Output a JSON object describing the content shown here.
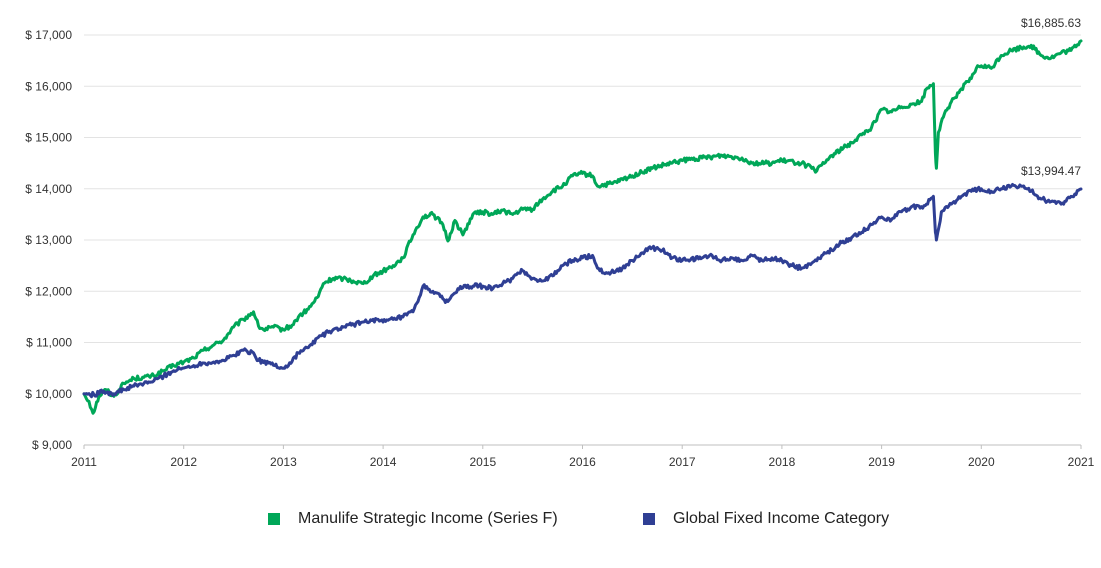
{
  "chart_data": {
    "type": "line",
    "title": "",
    "xlabel": "",
    "ylabel": "",
    "xlim": [
      2011,
      2021
    ],
    "ylim": [
      9000,
      17000
    ],
    "x_ticks": [
      "2011",
      "2012",
      "2013",
      "2014",
      "2015",
      "2016",
      "2017",
      "2018",
      "2019",
      "2020",
      "2021"
    ],
    "y_ticks": [
      "$ 9,000",
      "$ 10,000",
      "$ 11,000",
      "$ 12,000",
      "$ 13,000",
      "$ 14,000",
      "$ 15,000",
      "$ 16,000",
      "$ 17,000"
    ],
    "grid": true,
    "legend_position": "bottom-center",
    "series": [
      {
        "name": "Manulife Strategic Income (Series F)",
        "color": "#00a758",
        "end_label": "$16,885.63",
        "points": [
          [
            2011.0,
            10000
          ],
          [
            2011.05,
            9850
          ],
          [
            2011.09,
            9620
          ],
          [
            2011.15,
            9950
          ],
          [
            2011.22,
            10080
          ],
          [
            2011.3,
            9950
          ],
          [
            2011.4,
            10200
          ],
          [
            2011.5,
            10300
          ],
          [
            2011.6,
            10320
          ],
          [
            2011.7,
            10350
          ],
          [
            2011.8,
            10450
          ],
          [
            2011.9,
            10550
          ],
          [
            2012.0,
            10620
          ],
          [
            2012.1,
            10700
          ],
          [
            2012.2,
            10850
          ],
          [
            2012.3,
            10950
          ],
          [
            2012.4,
            11050
          ],
          [
            2012.5,
            11300
          ],
          [
            2012.6,
            11450
          ],
          [
            2012.7,
            11600
          ],
          [
            2012.75,
            11320
          ],
          [
            2012.8,
            11250
          ],
          [
            2012.9,
            11300
          ],
          [
            2013.0,
            11250
          ],
          [
            2013.1,
            11350
          ],
          [
            2013.15,
            11500
          ],
          [
            2013.25,
            11650
          ],
          [
            2013.35,
            11900
          ],
          [
            2013.4,
            12150
          ],
          [
            2013.5,
            12250
          ],
          [
            2013.6,
            12250
          ],
          [
            2013.7,
            12200
          ],
          [
            2013.8,
            12150
          ],
          [
            2013.9,
            12300
          ],
          [
            2014.0,
            12400
          ],
          [
            2014.1,
            12500
          ],
          [
            2014.2,
            12650
          ],
          [
            2014.3,
            13100
          ],
          [
            2014.4,
            13450
          ],
          [
            2014.5,
            13500
          ],
          [
            2014.6,
            13300
          ],
          [
            2014.65,
            12980
          ],
          [
            2014.72,
            13380
          ],
          [
            2014.8,
            13100
          ],
          [
            2014.9,
            13500
          ],
          [
            2015.0,
            13550
          ],
          [
            2015.1,
            13500
          ],
          [
            2015.2,
            13580
          ],
          [
            2015.3,
            13500
          ],
          [
            2015.4,
            13600
          ],
          [
            2015.5,
            13600
          ],
          [
            2015.6,
            13800
          ],
          [
            2015.7,
            13950
          ],
          [
            2015.8,
            14050
          ],
          [
            2015.9,
            14250
          ],
          [
            2016.0,
            14300
          ],
          [
            2016.1,
            14250
          ],
          [
            2016.15,
            14050
          ],
          [
            2016.3,
            14100
          ],
          [
            2016.5,
            14250
          ],
          [
            2016.7,
            14400
          ],
          [
            2016.9,
            14500
          ],
          [
            2017.0,
            14550
          ],
          [
            2017.2,
            14600
          ],
          [
            2017.4,
            14650
          ],
          [
            2017.6,
            14600
          ],
          [
            2017.7,
            14500
          ],
          [
            2017.9,
            14500
          ],
          [
            2018.0,
            14550
          ],
          [
            2018.2,
            14500
          ],
          [
            2018.3,
            14400
          ],
          [
            2018.35,
            14350
          ],
          [
            2018.5,
            14650
          ],
          [
            2018.7,
            14900
          ],
          [
            2018.8,
            15050
          ],
          [
            2018.9,
            15200
          ],
          [
            2019.0,
            15550
          ],
          [
            2019.1,
            15500
          ],
          [
            2019.2,
            15600
          ],
          [
            2019.3,
            15650
          ],
          [
            2019.4,
            15700
          ],
          [
            2019.45,
            15950
          ],
          [
            2019.52,
            16050
          ],
          [
            2019.54,
            14700
          ],
          [
            2019.55,
            14400
          ],
          [
            2019.57,
            15100
          ],
          [
            2019.62,
            15400
          ],
          [
            2019.7,
            15700
          ],
          [
            2019.8,
            15950
          ],
          [
            2019.9,
            16150
          ],
          [
            2019.95,
            16350
          ],
          [
            2020.0,
            16400
          ],
          [
            2020.1,
            16350
          ],
          [
            2020.2,
            16600
          ],
          [
            2020.3,
            16700
          ],
          [
            2020.4,
            16750
          ],
          [
            2020.5,
            16800
          ],
          [
            2020.6,
            16600
          ],
          [
            2020.7,
            16550
          ],
          [
            2020.8,
            16650
          ],
          [
            2020.9,
            16700
          ],
          [
            2021.0,
            16885.63
          ]
        ]
      },
      {
        "name": "Global Fixed Income Category",
        "color": "#2f3f94",
        "end_label": "$13,994.47",
        "points": [
          [
            2011.0,
            10000
          ],
          [
            2011.1,
            9980
          ],
          [
            2011.2,
            10050
          ],
          [
            2011.3,
            10000
          ],
          [
            2011.4,
            10080
          ],
          [
            2011.5,
            10150
          ],
          [
            2011.6,
            10200
          ],
          [
            2011.7,
            10250
          ],
          [
            2011.8,
            10350
          ],
          [
            2011.9,
            10450
          ],
          [
            2012.0,
            10500
          ],
          [
            2012.1,
            10550
          ],
          [
            2012.2,
            10600
          ],
          [
            2012.3,
            10620
          ],
          [
            2012.4,
            10650
          ],
          [
            2012.5,
            10750
          ],
          [
            2012.6,
            10850
          ],
          [
            2012.7,
            10800
          ],
          [
            2012.75,
            10650
          ],
          [
            2012.85,
            10600
          ],
          [
            2013.0,
            10500
          ],
          [
            2013.05,
            10550
          ],
          [
            2013.15,
            10800
          ],
          [
            2013.25,
            10900
          ],
          [
            2013.35,
            11100
          ],
          [
            2013.45,
            11200
          ],
          [
            2013.6,
            11300
          ],
          [
            2013.8,
            11400
          ],
          [
            2013.9,
            11450
          ],
          [
            2014.0,
            11400
          ],
          [
            2014.1,
            11450
          ],
          [
            2014.2,
            11500
          ],
          [
            2014.3,
            11600
          ],
          [
            2014.35,
            11800
          ],
          [
            2014.4,
            12100
          ],
          [
            2014.5,
            12000
          ],
          [
            2014.6,
            11850
          ],
          [
            2014.65,
            11800
          ],
          [
            2014.75,
            12050
          ],
          [
            2014.9,
            12100
          ],
          [
            2015.0,
            12100
          ],
          [
            2015.1,
            12050
          ],
          [
            2015.2,
            12150
          ],
          [
            2015.3,
            12250
          ],
          [
            2015.4,
            12400
          ],
          [
            2015.5,
            12250
          ],
          [
            2015.6,
            12200
          ],
          [
            2015.7,
            12300
          ],
          [
            2015.8,
            12500
          ],
          [
            2015.9,
            12600
          ],
          [
            2016.0,
            12650
          ],
          [
            2016.1,
            12700
          ],
          [
            2016.15,
            12450
          ],
          [
            2016.25,
            12350
          ],
          [
            2016.4,
            12450
          ],
          [
            2016.5,
            12600
          ],
          [
            2016.6,
            12750
          ],
          [
            2016.7,
            12850
          ],
          [
            2016.8,
            12800
          ],
          [
            2016.9,
            12650
          ],
          [
            2017.0,
            12600
          ],
          [
            2017.2,
            12650
          ],
          [
            2017.3,
            12700
          ],
          [
            2017.4,
            12600
          ],
          [
            2017.5,
            12650
          ],
          [
            2017.6,
            12600
          ],
          [
            2017.7,
            12700
          ],
          [
            2017.8,
            12600
          ],
          [
            2017.9,
            12650
          ],
          [
            2018.0,
            12600
          ],
          [
            2018.1,
            12500
          ],
          [
            2018.2,
            12450
          ],
          [
            2018.3,
            12550
          ],
          [
            2018.4,
            12700
          ],
          [
            2018.5,
            12800
          ],
          [
            2018.6,
            12950
          ],
          [
            2018.7,
            13050
          ],
          [
            2018.8,
            13150
          ],
          [
            2018.9,
            13300
          ],
          [
            2019.0,
            13450
          ],
          [
            2019.1,
            13400
          ],
          [
            2019.2,
            13550
          ],
          [
            2019.3,
            13650
          ],
          [
            2019.4,
            13650
          ],
          [
            2019.45,
            13700
          ],
          [
            2019.52,
            13850
          ],
          [
            2019.54,
            13150
          ],
          [
            2019.55,
            13000
          ],
          [
            2019.6,
            13550
          ],
          [
            2019.7,
            13700
          ],
          [
            2019.8,
            13850
          ],
          [
            2019.9,
            13950
          ],
          [
            2020.0,
            14000
          ],
          [
            2020.1,
            13950
          ],
          [
            2020.2,
            14000
          ],
          [
            2020.3,
            14050
          ],
          [
            2020.4,
            14050
          ],
          [
            2020.5,
            13950
          ],
          [
            2020.6,
            13800
          ],
          [
            2020.7,
            13750
          ],
          [
            2020.8,
            13700
          ],
          [
            2020.9,
            13850
          ],
          [
            2021.0,
            13994.47
          ]
        ]
      }
    ]
  }
}
